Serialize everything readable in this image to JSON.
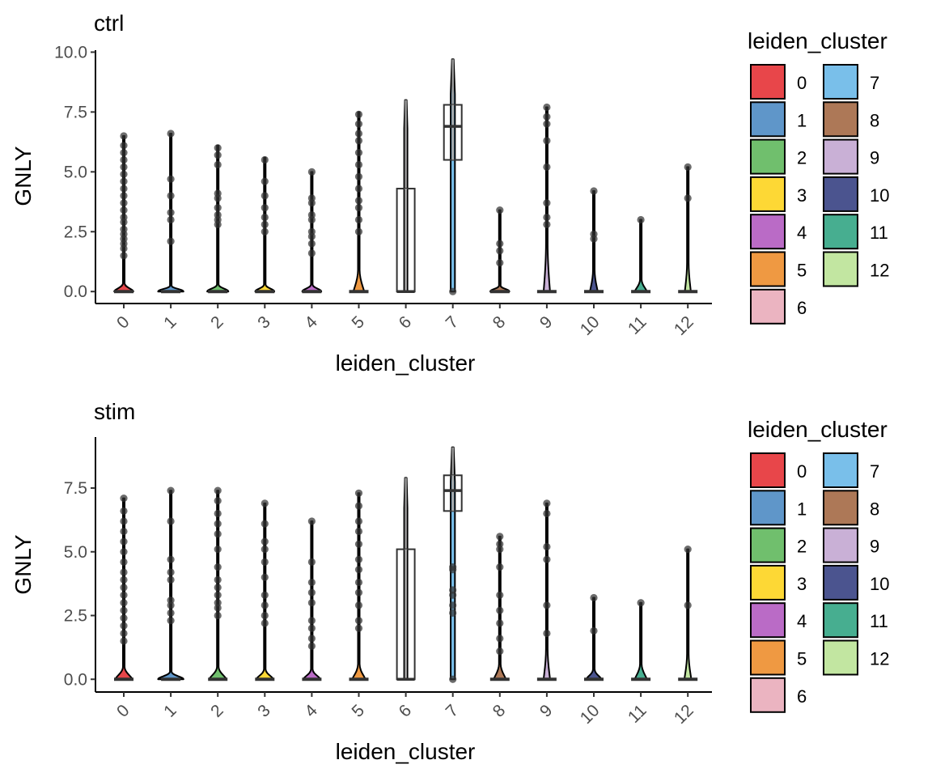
{
  "chart_data": [
    {
      "type": "violin",
      "title": "ctrl",
      "xlabel": "leiden_cluster",
      "ylabel": "GNLY",
      "ylim": [
        -0.5,
        10.15
      ],
      "yticks": [
        0.0,
        2.5,
        5.0,
        7.5,
        10.0
      ],
      "ytick_labels": [
        "0.0",
        "2.5",
        "5.0",
        "7.5",
        "10.0"
      ],
      "categories": [
        "0",
        "1",
        "2",
        "3",
        "4",
        "5",
        "6",
        "7",
        "8",
        "9",
        "10",
        "11",
        "12"
      ],
      "legend": {
        "title": "leiden_cluster",
        "placement": "right"
      },
      "clusters": [
        {
          "name": "0",
          "max": 6.5,
          "bulge_height": 0.35,
          "bulge_width": 0.45,
          "outliers": [
            1.5,
            1.8,
            2.0,
            2.2,
            2.4,
            2.6,
            2.9,
            3.1,
            3.4,
            3.7,
            4.0,
            4.3,
            4.6,
            4.9,
            5.2,
            5.5,
            5.8,
            6.1,
            6.5
          ]
        },
        {
          "name": "1",
          "max": 6.6,
          "bulge_height": 0.25,
          "bulge_width": 0.6,
          "outliers": [
            2.1,
            3.0,
            3.3,
            4.0,
            4.7,
            6.6
          ]
        },
        {
          "name": "2",
          "max": 6.1,
          "bulge_height": 0.3,
          "bulge_width": 0.5,
          "outliers": [
            2.8,
            3.0,
            3.2,
            3.5,
            3.9,
            4.1,
            5.3,
            5.7,
            6.0
          ]
        },
        {
          "name": "3",
          "max": 5.6,
          "bulge_height": 0.3,
          "bulge_width": 0.45,
          "outliers": [
            2.5,
            2.8,
            3.1,
            3.5,
            4.0,
            4.6,
            5.5
          ]
        },
        {
          "name": "4",
          "max": 5.0,
          "bulge_height": 0.3,
          "bulge_width": 0.45,
          "outliers": [
            1.6,
            2.0,
            2.3,
            2.5,
            3.0,
            3.2,
            3.7,
            3.9,
            5.0
          ]
        },
        {
          "name": "5",
          "max": 7.5,
          "bulge_height": 0.9,
          "bulge_width": 0.25,
          "outliers": [
            2.5,
            3.0,
            3.5,
            3.8,
            4.3,
            4.8,
            5.3,
            5.8,
            6.3,
            6.6,
            7.0,
            7.4
          ]
        },
        {
          "name": "6",
          "max": 8.0,
          "bulge_height": 0,
          "bulge_width": 0.06,
          "box": {
            "q1": 0.0,
            "median": 0.0,
            "q3": 4.3
          },
          "outliers": []
        },
        {
          "name": "7",
          "max": 9.7,
          "bulge_height": 0,
          "bulge_width": 0.1,
          "box": {
            "q1": 5.5,
            "median": 6.9,
            "q3": 7.8
          },
          "outliers": [
            0.0
          ]
        },
        {
          "name": "8",
          "max": 3.4,
          "bulge_height": 0.25,
          "bulge_width": 0.45,
          "outliers": [
            1.2,
            1.7,
            2.0,
            3.4
          ]
        },
        {
          "name": "9",
          "max": 7.7,
          "bulge_height": 2.0,
          "bulge_width": 0.15,
          "outliers": [
            2.8,
            3.1,
            3.7,
            5.2,
            6.3,
            7.0,
            7.3,
            7.7
          ]
        },
        {
          "name": "10",
          "max": 4.2,
          "bulge_height": 0.9,
          "bulge_width": 0.18,
          "outliers": [
            2.2,
            2.4,
            4.2
          ]
        },
        {
          "name": "11",
          "max": 3.0,
          "bulge_height": 0.5,
          "bulge_width": 0.28,
          "outliers": [
            3.0
          ]
        },
        {
          "name": "12",
          "max": 5.2,
          "bulge_height": 1.2,
          "bulge_width": 0.14,
          "outliers": [
            3.9,
            5.2
          ]
        }
      ]
    },
    {
      "type": "violin",
      "title": "stim",
      "xlabel": "leiden_cluster",
      "ylabel": "GNLY",
      "ylim": [
        -0.5,
        9.5
      ],
      "yticks": [
        0.0,
        2.5,
        5.0,
        7.5
      ],
      "ytick_labels": [
        "0.0",
        "2.5",
        "5.0",
        "7.5"
      ],
      "categories": [
        "0",
        "1",
        "2",
        "3",
        "4",
        "5",
        "6",
        "7",
        "8",
        "9",
        "10",
        "11",
        "12"
      ],
      "legend": {
        "title": "leiden_cluster",
        "placement": "right"
      },
      "clusters": [
        {
          "name": "0",
          "max": 7.1,
          "bulge_height": 0.5,
          "bulge_width": 0.4,
          "outliers": [
            1.5,
            1.8,
            2.1,
            2.4,
            2.7,
            3.0,
            3.3,
            3.6,
            3.9,
            4.2,
            4.6,
            5.0,
            5.4,
            5.8,
            6.2,
            6.6,
            7.1
          ]
        },
        {
          "name": "1",
          "max": 7.4,
          "bulge_height": 0.3,
          "bulge_width": 0.6,
          "outliers": [
            2.3,
            2.6,
            2.9,
            3.1,
            3.9,
            4.2,
            4.7,
            6.2,
            7.4
          ]
        },
        {
          "name": "2",
          "max": 7.4,
          "bulge_height": 0.5,
          "bulge_width": 0.4,
          "outliers": [
            2.5,
            2.8,
            3.0,
            3.3,
            3.6,
            3.9,
            4.4,
            5.1,
            5.7,
            6.1,
            6.5,
            7.0,
            7.4
          ]
        },
        {
          "name": "3",
          "max": 6.9,
          "bulge_height": 0.4,
          "bulge_width": 0.4,
          "outliers": [
            2.2,
            2.5,
            2.9,
            3.3,
            4.0,
            4.6,
            5.1,
            5.4,
            6.1,
            6.9
          ]
        },
        {
          "name": "4",
          "max": 6.2,
          "bulge_height": 0.4,
          "bulge_width": 0.4,
          "outliers": [
            1.3,
            1.6,
            2.0,
            2.3,
            3.0,
            3.4,
            3.8,
            4.6,
            6.2
          ]
        },
        {
          "name": "5",
          "max": 7.3,
          "bulge_height": 0.6,
          "bulge_width": 0.3,
          "outliers": [
            2.0,
            2.3,
            2.9,
            3.4,
            3.8,
            4.3,
            4.7,
            5.3,
            5.8,
            6.2,
            6.8,
            7.3
          ]
        },
        {
          "name": "6",
          "max": 7.9,
          "bulge_height": 0,
          "bulge_width": 0.06,
          "box": {
            "q1": 0.0,
            "median": 0.0,
            "q3": 5.1
          },
          "outliers": []
        },
        {
          "name": "7",
          "max": 9.1,
          "bulge_height": 0,
          "bulge_width": 0.1,
          "box": {
            "q1": 6.6,
            "median": 7.4,
            "q3": 8.0
          },
          "outliers": [
            0.0,
            2.6,
            2.9,
            3.3,
            3.5,
            4.3,
            4.4
          ]
        },
        {
          "name": "8",
          "max": 5.6,
          "bulge_height": 0.6,
          "bulge_width": 0.28,
          "outliers": [
            1.1,
            1.6,
            2.2,
            2.7,
            3.3,
            4.4,
            5.1,
            5.3,
            5.6
          ]
        },
        {
          "name": "9",
          "max": 6.9,
          "bulge_height": 1.2,
          "bulge_width": 0.15,
          "outliers": [
            1.8,
            2.9,
            4.7,
            5.2,
            6.5,
            6.9
          ]
        },
        {
          "name": "10",
          "max": 3.2,
          "bulge_height": 0.4,
          "bulge_width": 0.35,
          "outliers": [
            1.9,
            3.2
          ]
        },
        {
          "name": "11",
          "max": 3.0,
          "bulge_height": 0.6,
          "bulge_width": 0.28,
          "outliers": [
            3.0
          ]
        },
        {
          "name": "12",
          "max": 5.1,
          "bulge_height": 1.0,
          "bulge_width": 0.16,
          "outliers": [
            2.9,
            5.1
          ]
        }
      ]
    }
  ],
  "palette": {
    "0": "#E8464A",
    "1": "#5F96C9",
    "2": "#70BF6D",
    "3": "#FDD835",
    "4": "#BA6BC6",
    "5": "#EF9942",
    "6": "#EBB4C1",
    "7": "#79BFEA",
    "8": "#AD7857",
    "9": "#C9B0D6",
    "10": "#4B548F",
    "11": "#47AE90",
    "12": "#C2E6A1"
  }
}
